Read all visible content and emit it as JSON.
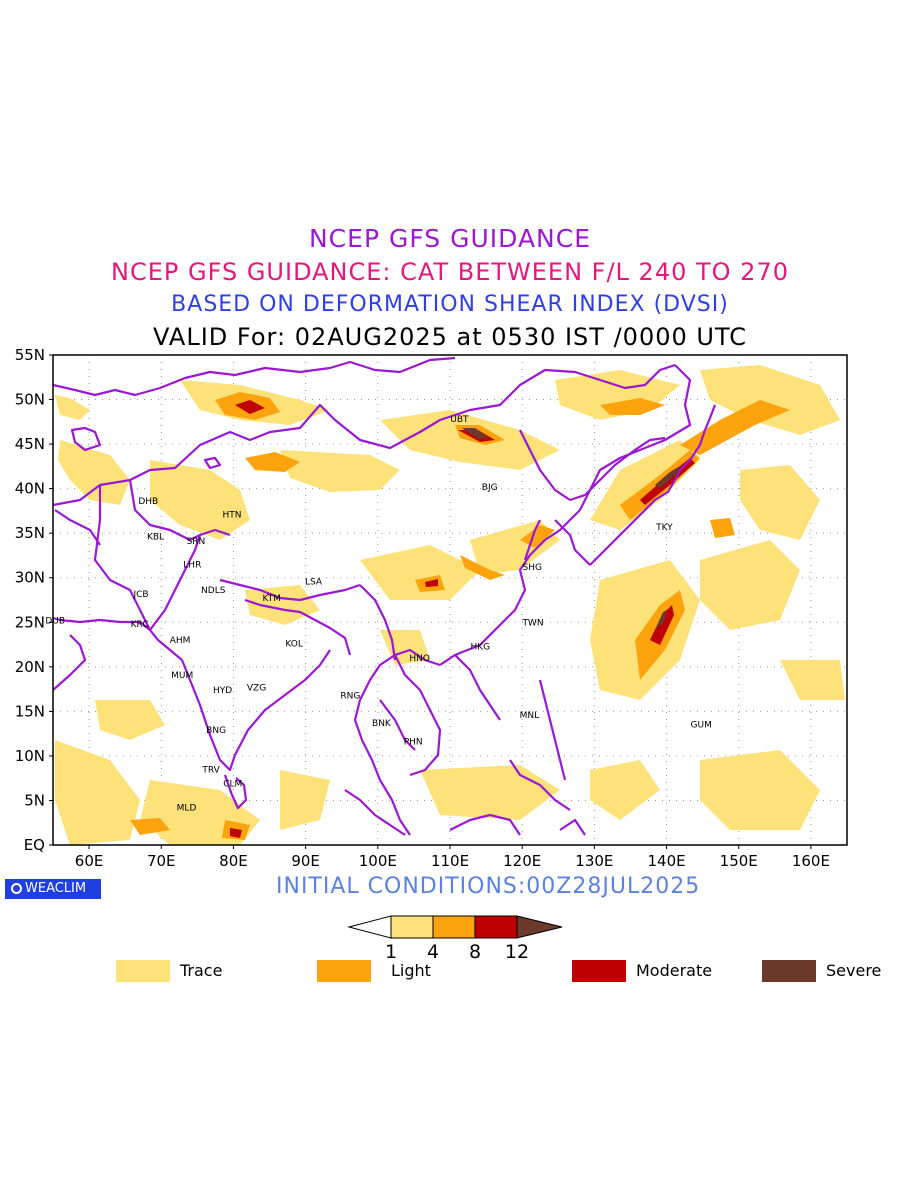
{
  "titles": {
    "line1": "NCEP GFS GUIDANCE",
    "line2": "NCEP GFS GUIDANCE: CAT BETWEEN F/L 240 TO 270",
    "line3": "BASED ON DEFORMATION SHEAR INDEX (DVSI)",
    "line4": "VALID For: 02AUG2025 at 0530 IST /0000 UTC"
  },
  "initial_conditions": "INITIAL CONDITIONS:00Z28JUL2025",
  "brand": "WEACLIM",
  "map": {
    "lat_labels": [
      "55N",
      "50N",
      "45N",
      "40N",
      "35N",
      "30N",
      "25N",
      "20N",
      "15N",
      "10N",
      "5N",
      "EQ"
    ],
    "lon_labels": [
      "60E",
      "70E",
      "80E",
      "90E",
      "100E",
      "110E",
      "120E",
      "130E",
      "140E",
      "150E",
      "160E"
    ],
    "stations": [
      {
        "name": "UBT",
        "lon": 111.3,
        "lat": 47.8
      },
      {
        "name": "BJG",
        "lon": 115.5,
        "lat": 40.2
      },
      {
        "name": "DHB",
        "lon": 68.2,
        "lat": 38.6
      },
      {
        "name": "HTN",
        "lon": 79.8,
        "lat": 37.1
      },
      {
        "name": "KBL",
        "lon": 69.2,
        "lat": 34.6
      },
      {
        "name": "SRN",
        "lon": 74.8,
        "lat": 34.1
      },
      {
        "name": "TKY",
        "lon": 139.7,
        "lat": 35.7
      },
      {
        "name": "LHR",
        "lon": 74.3,
        "lat": 31.5
      },
      {
        "name": "LSA",
        "lon": 91.1,
        "lat": 29.6
      },
      {
        "name": "SHG",
        "lon": 121.4,
        "lat": 31.2
      },
      {
        "name": "JCB",
        "lon": 67.2,
        "lat": 28.2
      },
      {
        "name": "NDLS",
        "lon": 77.2,
        "lat": 28.6
      },
      {
        "name": "KTM",
        "lon": 85.3,
        "lat": 27.7
      },
      {
        "name": "DUB",
        "lon": 55.3,
        "lat": 25.2
      },
      {
        "name": "KRC",
        "lon": 67.0,
        "lat": 24.8
      },
      {
        "name": "TWN",
        "lon": 121.5,
        "lat": 25.0
      },
      {
        "name": "AHM",
        "lon": 72.6,
        "lat": 23.0
      },
      {
        "name": "KOL",
        "lon": 88.4,
        "lat": 22.6
      },
      {
        "name": "HKG",
        "lon": 114.2,
        "lat": 22.3
      },
      {
        "name": "HNO",
        "lon": 105.8,
        "lat": 21.0
      },
      {
        "name": "MUM",
        "lon": 72.9,
        "lat": 19.1
      },
      {
        "name": "HYD",
        "lon": 78.5,
        "lat": 17.4
      },
      {
        "name": "VZG",
        "lon": 83.2,
        "lat": 17.7
      },
      {
        "name": "RNG",
        "lon": 96.2,
        "lat": 16.8
      },
      {
        "name": "MNL",
        "lon": 121.0,
        "lat": 14.6
      },
      {
        "name": "GUM",
        "lon": 144.8,
        "lat": 13.5
      },
      {
        "name": "BNK",
        "lon": 100.5,
        "lat": 13.7
      },
      {
        "name": "BNG",
        "lon": 77.6,
        "lat": 12.9
      },
      {
        "name": "PHN",
        "lon": 104.9,
        "lat": 11.6
      },
      {
        "name": "TRV",
        "lon": 76.9,
        "lat": 8.5
      },
      {
        "name": "CLM",
        "lon": 79.9,
        "lat": 6.9
      },
      {
        "name": "MLD",
        "lon": 73.5,
        "lat": 4.2
      }
    ]
  },
  "colorbar": {
    "ticks": [
      "1",
      "4",
      "8",
      "12"
    ],
    "colors": [
      "#ffffff",
      "#fde27a",
      "#fca30d",
      "#c00000",
      "#6b3a2a"
    ]
  },
  "legend": [
    {
      "label": "Trace",
      "color": "#fde27a"
    },
    {
      "label": "Light",
      "color": "#fca30d"
    },
    {
      "label": "Moderate",
      "color": "#c00000"
    },
    {
      "label": "Severe",
      "color": "#6b3a2a"
    }
  ],
  "colors": {
    "boundary": "#9b17d4",
    "trace": "#fde27a",
    "light": "#fca30d",
    "moderate": "#c00000",
    "severe": "#6b3a2a"
  }
}
